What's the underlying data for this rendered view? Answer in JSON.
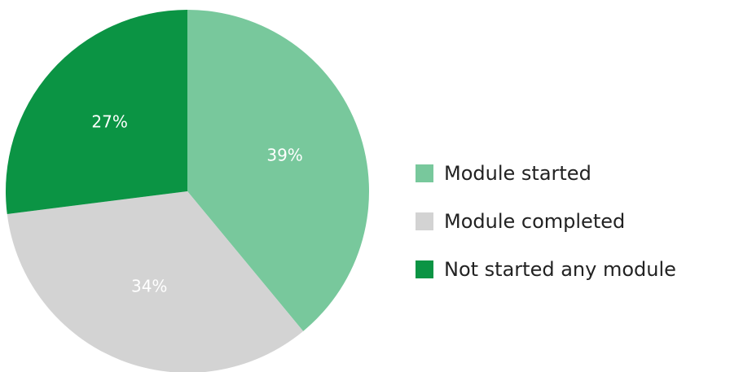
{
  "chart_data": {
    "type": "pie",
    "title": "",
    "slices": [
      {
        "label": "Module started",
        "value": 39,
        "display": "39%",
        "color": "#78c89c"
      },
      {
        "label": "Module completed",
        "value": 34,
        "display": "34%",
        "color": "#d3d3d3"
      },
      {
        "label": "Not started any module",
        "value": 27,
        "display": "27%",
        "color": "#0b9444"
      }
    ],
    "legend_position": "right",
    "start_direction": "top",
    "rotation": "clockwise"
  }
}
